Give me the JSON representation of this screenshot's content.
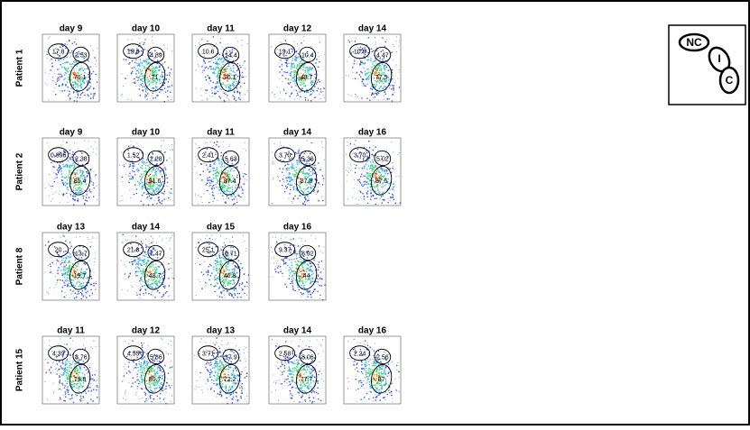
{
  "rows": [
    {
      "label": "Patient 1",
      "panels": [
        {
          "day": "day 9",
          "gates": [
            "17.8",
            "2.53",
            "70.1"
          ]
        },
        {
          "day": "day 10",
          "gates": [
            "15.8",
            "4.89",
            "71"
          ]
        },
        {
          "day": "day 11",
          "gates": [
            "10.6",
            "14.4",
            "70.1"
          ]
        },
        {
          "day": "day 12",
          "gates": [
            "19.1",
            "10.4",
            "48.7"
          ]
        },
        {
          "day": "day 14",
          "gates": [
            "10.6",
            "4.47",
            "77.5"
          ]
        }
      ]
    },
    {
      "label": "Patient 2",
      "panels": [
        {
          "day": "day 9",
          "gates": [
            "0.896",
            "2.38",
            "85.4"
          ]
        },
        {
          "day": "day 10",
          "gates": [
            "1.52",
            "2.28",
            "91.6"
          ]
        },
        {
          "day": "day 11",
          "gates": [
            "2.41",
            "5.63",
            "87.4"
          ]
        },
        {
          "day": "day 14",
          "gates": [
            "3.70",
            "5.36",
            "87.8"
          ]
        },
        {
          "day": "day 16",
          "gates": [
            "3.70",
            "5.02",
            "87.5"
          ]
        }
      ]
    },
    {
      "label": "Patient 8",
      "panels": [
        {
          "day": "day 13",
          "gates": [
            "20",
            "13.7",
            "19.7"
          ]
        },
        {
          "day": "day 14",
          "gates": [
            "21.8",
            "7.47",
            "48.7"
          ]
        },
        {
          "day": "day 15",
          "gates": [
            "25.1",
            "6.71",
            "46.8"
          ]
        },
        {
          "day": "day 16",
          "gates": [
            "9.37",
            "8.92",
            "44"
          ]
        }
      ]
    },
    {
      "label": "Patient 15",
      "panels": [
        {
          "day": "day 11",
          "gates": [
            "4.39",
            "8.76",
            "79.8"
          ]
        },
        {
          "day": "day 12",
          "gates": [
            "4.55",
            "5.86",
            "80.7"
          ]
        },
        {
          "day": "day 13",
          "gates": [
            "3.71",
            "17.9",
            "72.2"
          ]
        },
        {
          "day": "day 14",
          "gates": [
            "2.58",
            "8.06",
            "77.7"
          ]
        },
        {
          "day": "day 16",
          "gates": [
            "2.24",
            "2.56",
            "87"
          ]
        }
      ]
    }
  ],
  "legend": {
    "nc": "NC",
    "i": "I",
    "c": "C"
  }
}
